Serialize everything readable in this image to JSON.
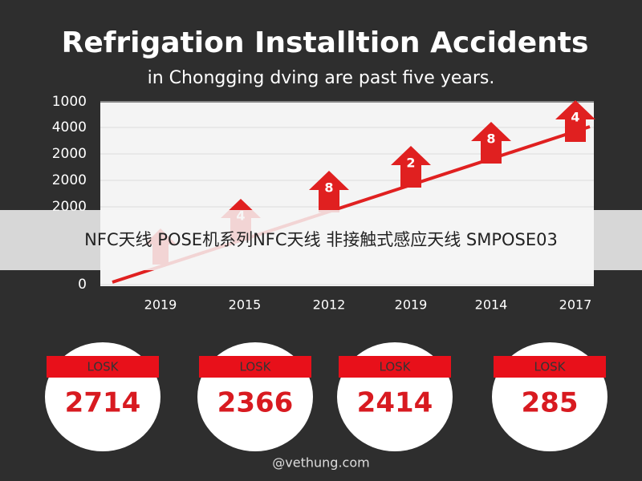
{
  "header": {
    "title": "Refrigation Installtion Accidents",
    "subtitle": "in Chongging dving are past five years."
  },
  "chart": {
    "y_labels": [
      "1000",
      "4000",
      "2000",
      "2000",
      "2000",
      "0"
    ],
    "x_labels": [
      "2019",
      "2015",
      "2012",
      "2019",
      "2014",
      "2017"
    ],
    "arrow_labels": [
      "4",
      "8",
      "2",
      "8",
      "4"
    ]
  },
  "cards": [
    {
      "label": "LOSK",
      "value": "2714"
    },
    {
      "label": "LOSK",
      "value": "2366"
    },
    {
      "label": "LOSK",
      "value": "2414"
    },
    {
      "label": "LOSK",
      "value": "285"
    }
  ],
  "watermark": "@vethung.com",
  "banner": "NFC天线 POSE机系列NFC天线 非接触式感应天线 SMPOSE03"
}
